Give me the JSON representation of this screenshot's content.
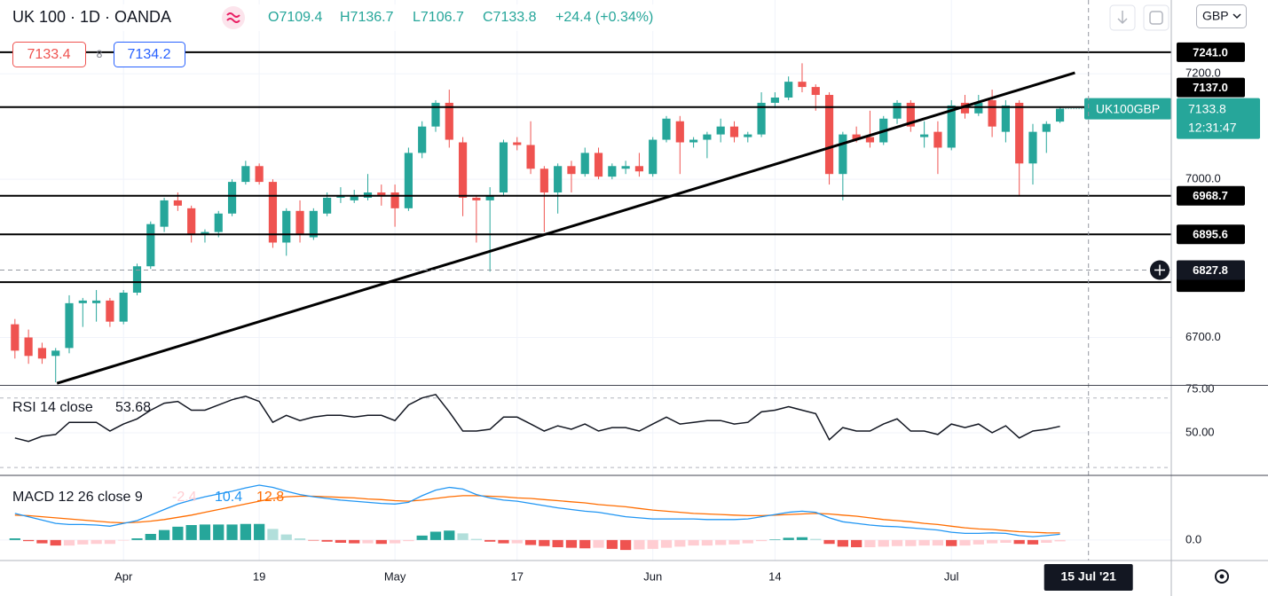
{
  "header": {
    "title": "UK 100 · 1D · OANDA",
    "ohlc": [
      "O7109.4",
      "H7136.7",
      "L7106.7",
      "C7133.8"
    ],
    "change": "+24.4 (+0.34%)",
    "bid": "7133.4",
    "spread": "8",
    "ask": "7134.2",
    "currency": "GBP"
  },
  "chart_data": [
    {
      "type": "candlestick",
      "up_color": "#26a69a",
      "down_color": "#ef5350",
      "xlim": [
        -1.1,
        85.2
      ],
      "ylim": [
        6610,
        7340
      ],
      "yticks": [
        {
          "value": 6700,
          "label": "6700.0"
        },
        {
          "value": 7000,
          "label": "7000.0"
        },
        {
          "value": 7200,
          "label": "7200.0"
        }
      ],
      "xticks": [
        {
          "value": 8,
          "label": "Apr"
        },
        {
          "value": 18,
          "label": "19"
        },
        {
          "value": 28,
          "label": "May"
        },
        {
          "value": 37,
          "label": "17"
        },
        {
          "value": 47,
          "label": "Jun"
        },
        {
          "value": 56,
          "label": "14"
        },
        {
          "value": 69,
          "label": "Jul"
        }
      ],
      "open": [
        6725,
        6700,
        6680,
        6665,
        6680,
        6765,
        6765,
        6770,
        6730,
        6785,
        6835,
        6910,
        6960,
        6945,
        6895,
        6900,
        6935,
        6995,
        7025,
        6995,
        6880,
        6940,
        6890,
        6935,
        6965,
        6960,
        6965,
        6975,
        6975,
        6945,
        7050,
        7100,
        7145,
        7070,
        6965,
        6960,
        6975,
        7070,
        7065,
        7020,
        6975,
        7025,
        7010,
        7050,
        7005,
        7020,
        7025,
        7010,
        7075,
        7110,
        7070,
        7075,
        7085,
        7100,
        7080,
        7085,
        7145,
        7155,
        7185,
        7175,
        7160,
        7010,
        7085,
        7080,
        7070,
        7115,
        7145,
        7080,
        7090,
        7060,
        7145,
        7125,
        7150,
        7090,
        7145,
        7030,
        7090,
        7109.4
      ],
      "high": [
        6735,
        6715,
        6690,
        6680,
        6780,
        6775,
        6790,
        6775,
        6790,
        6840,
        6920,
        6965,
        6975,
        6950,
        6905,
        6940,
        7000,
        7035,
        7030,
        7000,
        6945,
        6960,
        6945,
        6975,
        6985,
        6980,
        7010,
        6990,
        6990,
        7060,
        7110,
        7150,
        7170,
        7080,
        6970,
        6985,
        7075,
        7080,
        7110,
        7025,
        7030,
        7035,
        7060,
        7060,
        7030,
        7035,
        7050,
        7080,
        7120,
        7120,
        7080,
        7090,
        7115,
        7110,
        7090,
        7165,
        7165,
        7195,
        7220,
        7180,
        7165,
        7090,
        7100,
        7130,
        7120,
        7150,
        7150,
        7110,
        7110,
        7150,
        7160,
        7160,
        7170,
        7150,
        7150,
        7105,
        7110,
        7136.7
      ],
      "low": [
        6660,
        6650,
        6650,
        6615,
        6670,
        6720,
        6730,
        6720,
        6725,
        6780,
        6830,
        6900,
        6940,
        6880,
        6880,
        6890,
        6930,
        6990,
        6990,
        6870,
        6855,
        6880,
        6885,
        6930,
        6955,
        6955,
        6960,
        6950,
        6910,
        6940,
        7040,
        7090,
        7060,
        6930,
        6880,
        6825,
        6970,
        7055,
        7010,
        6900,
        6935,
        6975,
        7005,
        7000,
        7000,
        7010,
        7005,
        7005,
        7070,
        7010,
        7060,
        7040,
        7070,
        7070,
        7070,
        7080,
        7135,
        7150,
        7165,
        7130,
        6990,
        6960,
        7070,
        7060,
        7065,
        7105,
        7090,
        7060,
        7010,
        7055,
        7115,
        7120,
        7080,
        7070,
        6970,
        6990,
        7050,
        7106.7
      ],
      "close": [
        6675,
        6665,
        6660,
        6675,
        6765,
        6770,
        6770,
        6730,
        6785,
        6835,
        6915,
        6960,
        6950,
        6895,
        6900,
        6935,
        6995,
        7025,
        6995,
        6880,
        6940,
        6895,
        6940,
        6965,
        6970,
        6970,
        6975,
        6970,
        6945,
        7050,
        7100,
        7145,
        7075,
        6965,
        6960,
        6970,
        7070,
        7065,
        7020,
        6975,
        7025,
        7010,
        7050,
        7005,
        7025,
        7025,
        7015,
        7075,
        7115,
        7070,
        7075,
        7085,
        7100,
        7080,
        7085,
        7145,
        7155,
        7185,
        7175,
        7160,
        7010,
        7085,
        7075,
        7070,
        7115,
        7145,
        7100,
        7085,
        7060,
        7140,
        7125,
        7145,
        7100,
        7140,
        7030,
        7090,
        7105,
        7133.8
      ],
      "levels": [
        {
          "value": 7241.0,
          "label": "7241.0"
        },
        {
          "value": 7137.0,
          "label": "7137.0"
        },
        {
          "value": 6968.7,
          "label": "6968.7"
        },
        {
          "value": 6895.6,
          "label": "6895.6"
        },
        {
          "value": 6805
        }
      ],
      "trendline": {
        "x": [
          3.1,
          78.1
        ],
        "y": [
          6613,
          7202
        ]
      },
      "last_price": {
        "symbol": "UK100GBP",
        "countdown": "12:31:47"
      },
      "crosshair": {
        "y": 6827.8,
        "x": 79.1,
        "x_label": "15 Jul '21"
      }
    },
    {
      "type": "line",
      "title": "RSI 14 close",
      "color": "#131722",
      "ylim": [
        26,
        77
      ],
      "yticks": [
        {
          "value": 50,
          "label": "50.00"
        },
        {
          "value": 75,
          "label": "75.00"
        }
      ],
      "bands": [
        30,
        70
      ],
      "values": [
        47,
        45,
        48,
        49,
        56,
        56,
        56,
        51,
        55,
        58,
        63,
        67,
        68,
        63,
        63,
        66,
        69,
        71,
        68,
        56,
        60,
        57,
        59,
        60,
        60,
        59,
        60,
        60,
        57,
        66,
        70,
        72,
        62,
        51,
        51,
        52,
        59,
        59,
        55,
        51,
        54,
        52,
        55,
        51,
        53,
        53,
        51,
        55,
        59,
        55,
        56,
        57,
        57,
        55,
        56,
        62,
        63,
        65,
        63,
        61,
        46,
        53,
        51,
        51,
        55,
        58,
        51,
        51,
        49,
        55,
        53,
        55,
        50,
        54,
        47,
        51,
        52,
        53.68
      ]
    },
    {
      "type": "macd",
      "title": "MACD 12 26 close 9",
      "ylim": [
        -37,
        115
      ],
      "yticks": [
        {
          "value": 0,
          "label": "0.0"
        }
      ],
      "histogram_colors": [
        "#26a69a",
        "#b2dfdb",
        "#ffcdd2",
        "#ef5350"
      ],
      "histogram": [
        3,
        -2,
        -6,
        -10,
        -10,
        -8,
        -7,
        -7,
        -1,
        3,
        11,
        18,
        24,
        27,
        28,
        28,
        28,
        29,
        29,
        20,
        10,
        3,
        -1,
        -3,
        -5,
        -6,
        -6,
        -7,
        -6,
        -2,
        8,
        15,
        17,
        12,
        2,
        -3,
        -6,
        -6,
        -9,
        -11,
        -13,
        -14,
        -15,
        -14,
        -16,
        -18,
        -17,
        -16,
        -14,
        -12,
        -10,
        -10,
        -9,
        -8,
        -6,
        -2,
        1,
        4,
        5,
        2,
        -7,
        -12,
        -13,
        -13,
        -12,
        -11,
        -11,
        -10,
        -10,
        -11,
        -10,
        -8,
        -6,
        -5,
        -7,
        -8,
        -5,
        -2.4
      ],
      "macd": {
        "color": "#2196f3",
        "values": [
          48,
          42,
          36,
          30,
          28,
          28,
          27,
          25,
          30,
          35,
          45,
          55,
          65,
          72,
          78,
          83,
          88,
          94,
          99,
          95,
          88,
          82,
          78,
          75,
          72,
          70,
          68,
          66,
          65,
          68,
          80,
          90,
          95,
          92,
          82,
          76,
          72,
          70,
          66,
          62,
          58,
          55,
          52,
          50,
          46,
          42,
          40,
          38,
          38,
          38,
          38,
          37,
          37,
          37,
          38,
          42,
          46,
          50,
          52,
          50,
          40,
          33,
          30,
          27,
          25,
          24,
          22,
          20,
          18,
          14,
          12,
          12,
          13,
          12,
          8,
          6,
          8,
          10.4
        ]
      },
      "signal": {
        "color": "#ff6d00",
        "values": [
          45,
          44,
          42,
          40,
          38,
          36,
          34,
          32,
          31,
          32,
          34,
          37,
          41,
          45,
          50,
          55,
          60,
          65,
          70,
          75,
          78,
          79,
          79,
          78,
          77,
          76,
          74,
          73,
          71,
          70,
          72,
          75,
          78,
          80,
          80,
          79,
          78,
          76,
          75,
          73,
          71,
          69,
          67,
          64,
          62,
          60,
          57,
          54,
          52,
          50,
          48,
          47,
          46,
          45,
          44,
          44,
          45,
          46,
          47,
          48,
          47,
          45,
          43,
          40,
          37,
          35,
          33,
          30,
          28,
          25,
          22,
          20,
          19,
          17,
          15,
          14,
          13,
          12.8
        ]
      }
    }
  ]
}
